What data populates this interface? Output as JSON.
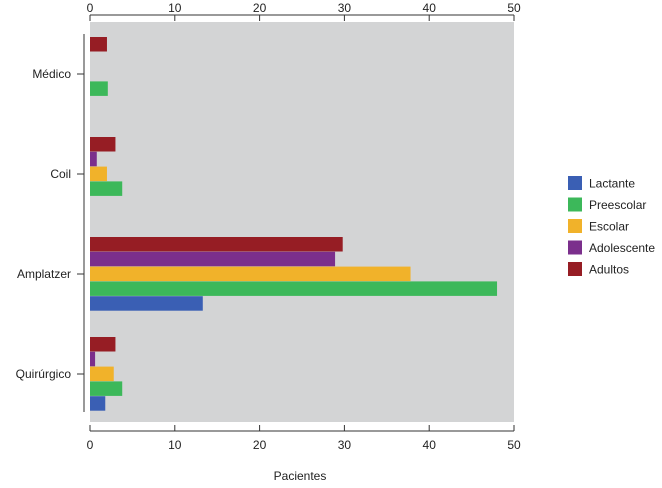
{
  "chart_data": {
    "type": "bar",
    "orientation": "horizontal",
    "categories": [
      "Médico",
      "Coil",
      "Amplatzer",
      "Quirúrgico"
    ],
    "series": [
      {
        "name": "Lactante",
        "color": "#3a5fb4",
        "values": [
          0,
          0,
          13.3,
          1.8
        ]
      },
      {
        "name": "Preescolar",
        "color": "#3cb85a",
        "values": [
          2.1,
          3.8,
          48,
          3.8
        ]
      },
      {
        "name": "Escolar",
        "color": "#f1b22a",
        "values": [
          0,
          2,
          37.8,
          2.8
        ]
      },
      {
        "name": "Adolescente",
        "color": "#7b2f8c",
        "values": [
          0,
          0.8,
          28.9,
          0.6
        ]
      },
      {
        "name": "Adultos",
        "color": "#961d24",
        "values": [
          2,
          3,
          29.8,
          3
        ]
      }
    ],
    "xlabel": "Pacientes",
    "xlim": [
      0,
      50
    ],
    "xticks": [
      0,
      10,
      20,
      30,
      40,
      50
    ],
    "axis_ticks_top_and_bottom": true,
    "plot_background": "#d3d4d5",
    "grid": false,
    "legend_position": "right"
  }
}
